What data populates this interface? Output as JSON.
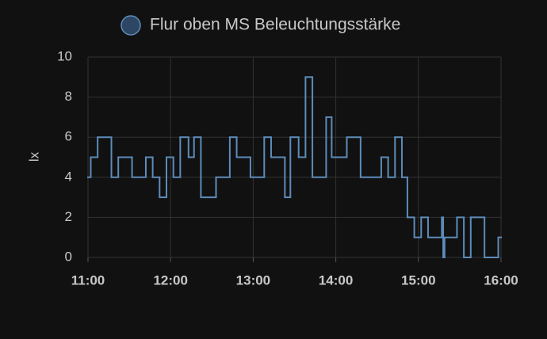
{
  "chart_data": {
    "type": "step-line",
    "y_label": "lx",
    "series": [
      {
        "name": "Flur oben MS Beleuchtungsstärke",
        "color": "#5d8cba",
        "x": [
          "11:00",
          "11:02",
          "11:07",
          "11:17",
          "11:22",
          "11:32",
          "11:42",
          "11:47",
          "11:52",
          "11:57",
          "12:02",
          "12:07",
          "12:13",
          "12:17",
          "12:22",
          "12:33",
          "12:43",
          "12:48",
          "12:58",
          "13:08",
          "13:13",
          "13:23",
          "13:27",
          "13:33",
          "13:38",
          "13:43",
          "13:53",
          "13:57",
          "14:08",
          "14:18",
          "14:33",
          "14:38",
          "14:43",
          "14:48",
          "14:52",
          "14:57",
          "15:02",
          "15:07",
          "15:17",
          "15:18",
          "15:19",
          "15:28",
          "15:33",
          "15:38",
          "15:48",
          "15:58",
          "16:00"
        ],
        "values": [
          4,
          5,
          6,
          4,
          5,
          4,
          5,
          4,
          3,
          5,
          4,
          6,
          5,
          6,
          3,
          4,
          6,
          5,
          4,
          6,
          5,
          3,
          6,
          5,
          9,
          4,
          7,
          5,
          6,
          4,
          5,
          4,
          6,
          4,
          2,
          1,
          2,
          1,
          2,
          0,
          1,
          2,
          0,
          2,
          0,
          1,
          1
        ]
      }
    ],
    "xlim": [
      "11:00",
      "16:00"
    ],
    "xticks": [
      "11:00",
      "12:00",
      "13:00",
      "14:00",
      "15:00",
      "16:00"
    ],
    "ylim": [
      0,
      10
    ],
    "yticks": [
      0,
      2,
      4,
      6,
      8,
      10
    ],
    "grid": true
  }
}
